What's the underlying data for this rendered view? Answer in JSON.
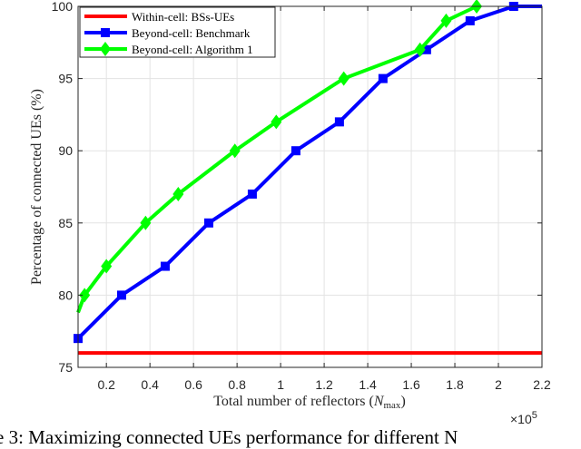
{
  "chart_data": {
    "type": "line",
    "xlabel": "Total number of reflectors (N_max)",
    "xlabel_main": "Total number of reflectors (",
    "xlabel_symbol": "N",
    "xlabel_sub": "max",
    "xlabel_close": ")",
    "x_multiplier": "×10",
    "x_multiplier_exp": "5",
    "ylabel": "Percentage of connected UEs (%)",
    "xlim": [
      0.07,
      2.2
    ],
    "ylim": [
      75,
      100
    ],
    "xticks": [
      "0.2",
      "0.4",
      "0.6",
      "0.8",
      "1",
      "1.2",
      "1.4",
      "1.6",
      "1.8",
      "2",
      "2.2"
    ],
    "yticks": [
      "75",
      "80",
      "85",
      "90",
      "95",
      "100"
    ],
    "grid": true,
    "legend_position": "top-left",
    "series": [
      {
        "name": "Within-cell:  BSs-UEs",
        "color": "#ff0000",
        "marker": "none",
        "x": [
          0.07,
          2.2
        ],
        "y": [
          76,
          76
        ]
      },
      {
        "name": "Beyond-cell:  Benchmark",
        "color": "#0000ff",
        "marker": "square",
        "x": [
          0.07,
          0.27,
          0.47,
          0.67,
          0.87,
          1.07,
          1.27,
          1.47,
          1.67,
          1.87,
          2.07,
          2.2
        ],
        "y": [
          77,
          80,
          82,
          85,
          87,
          90,
          92,
          95,
          97,
          99,
          100,
          100
        ],
        "marked": [
          true,
          true,
          true,
          true,
          true,
          true,
          true,
          true,
          true,
          true,
          true,
          false
        ]
      },
      {
        "name": "Beyond-cell:  Algorithm 1",
        "color": "#00ff00",
        "marker": "diamond",
        "x": [
          0.07,
          0.1,
          0.2,
          0.38,
          0.53,
          0.79,
          0.98,
          1.29,
          1.64,
          1.76,
          1.9
        ],
        "y": [
          78.8,
          80,
          82,
          85,
          87,
          90,
          92,
          95,
          97,
          99,
          100
        ],
        "marked": [
          false,
          true,
          true,
          true,
          true,
          true,
          true,
          true,
          true,
          true,
          true
        ]
      }
    ]
  },
  "caption": "re 3: Maximizing connected UEs performance for different N"
}
